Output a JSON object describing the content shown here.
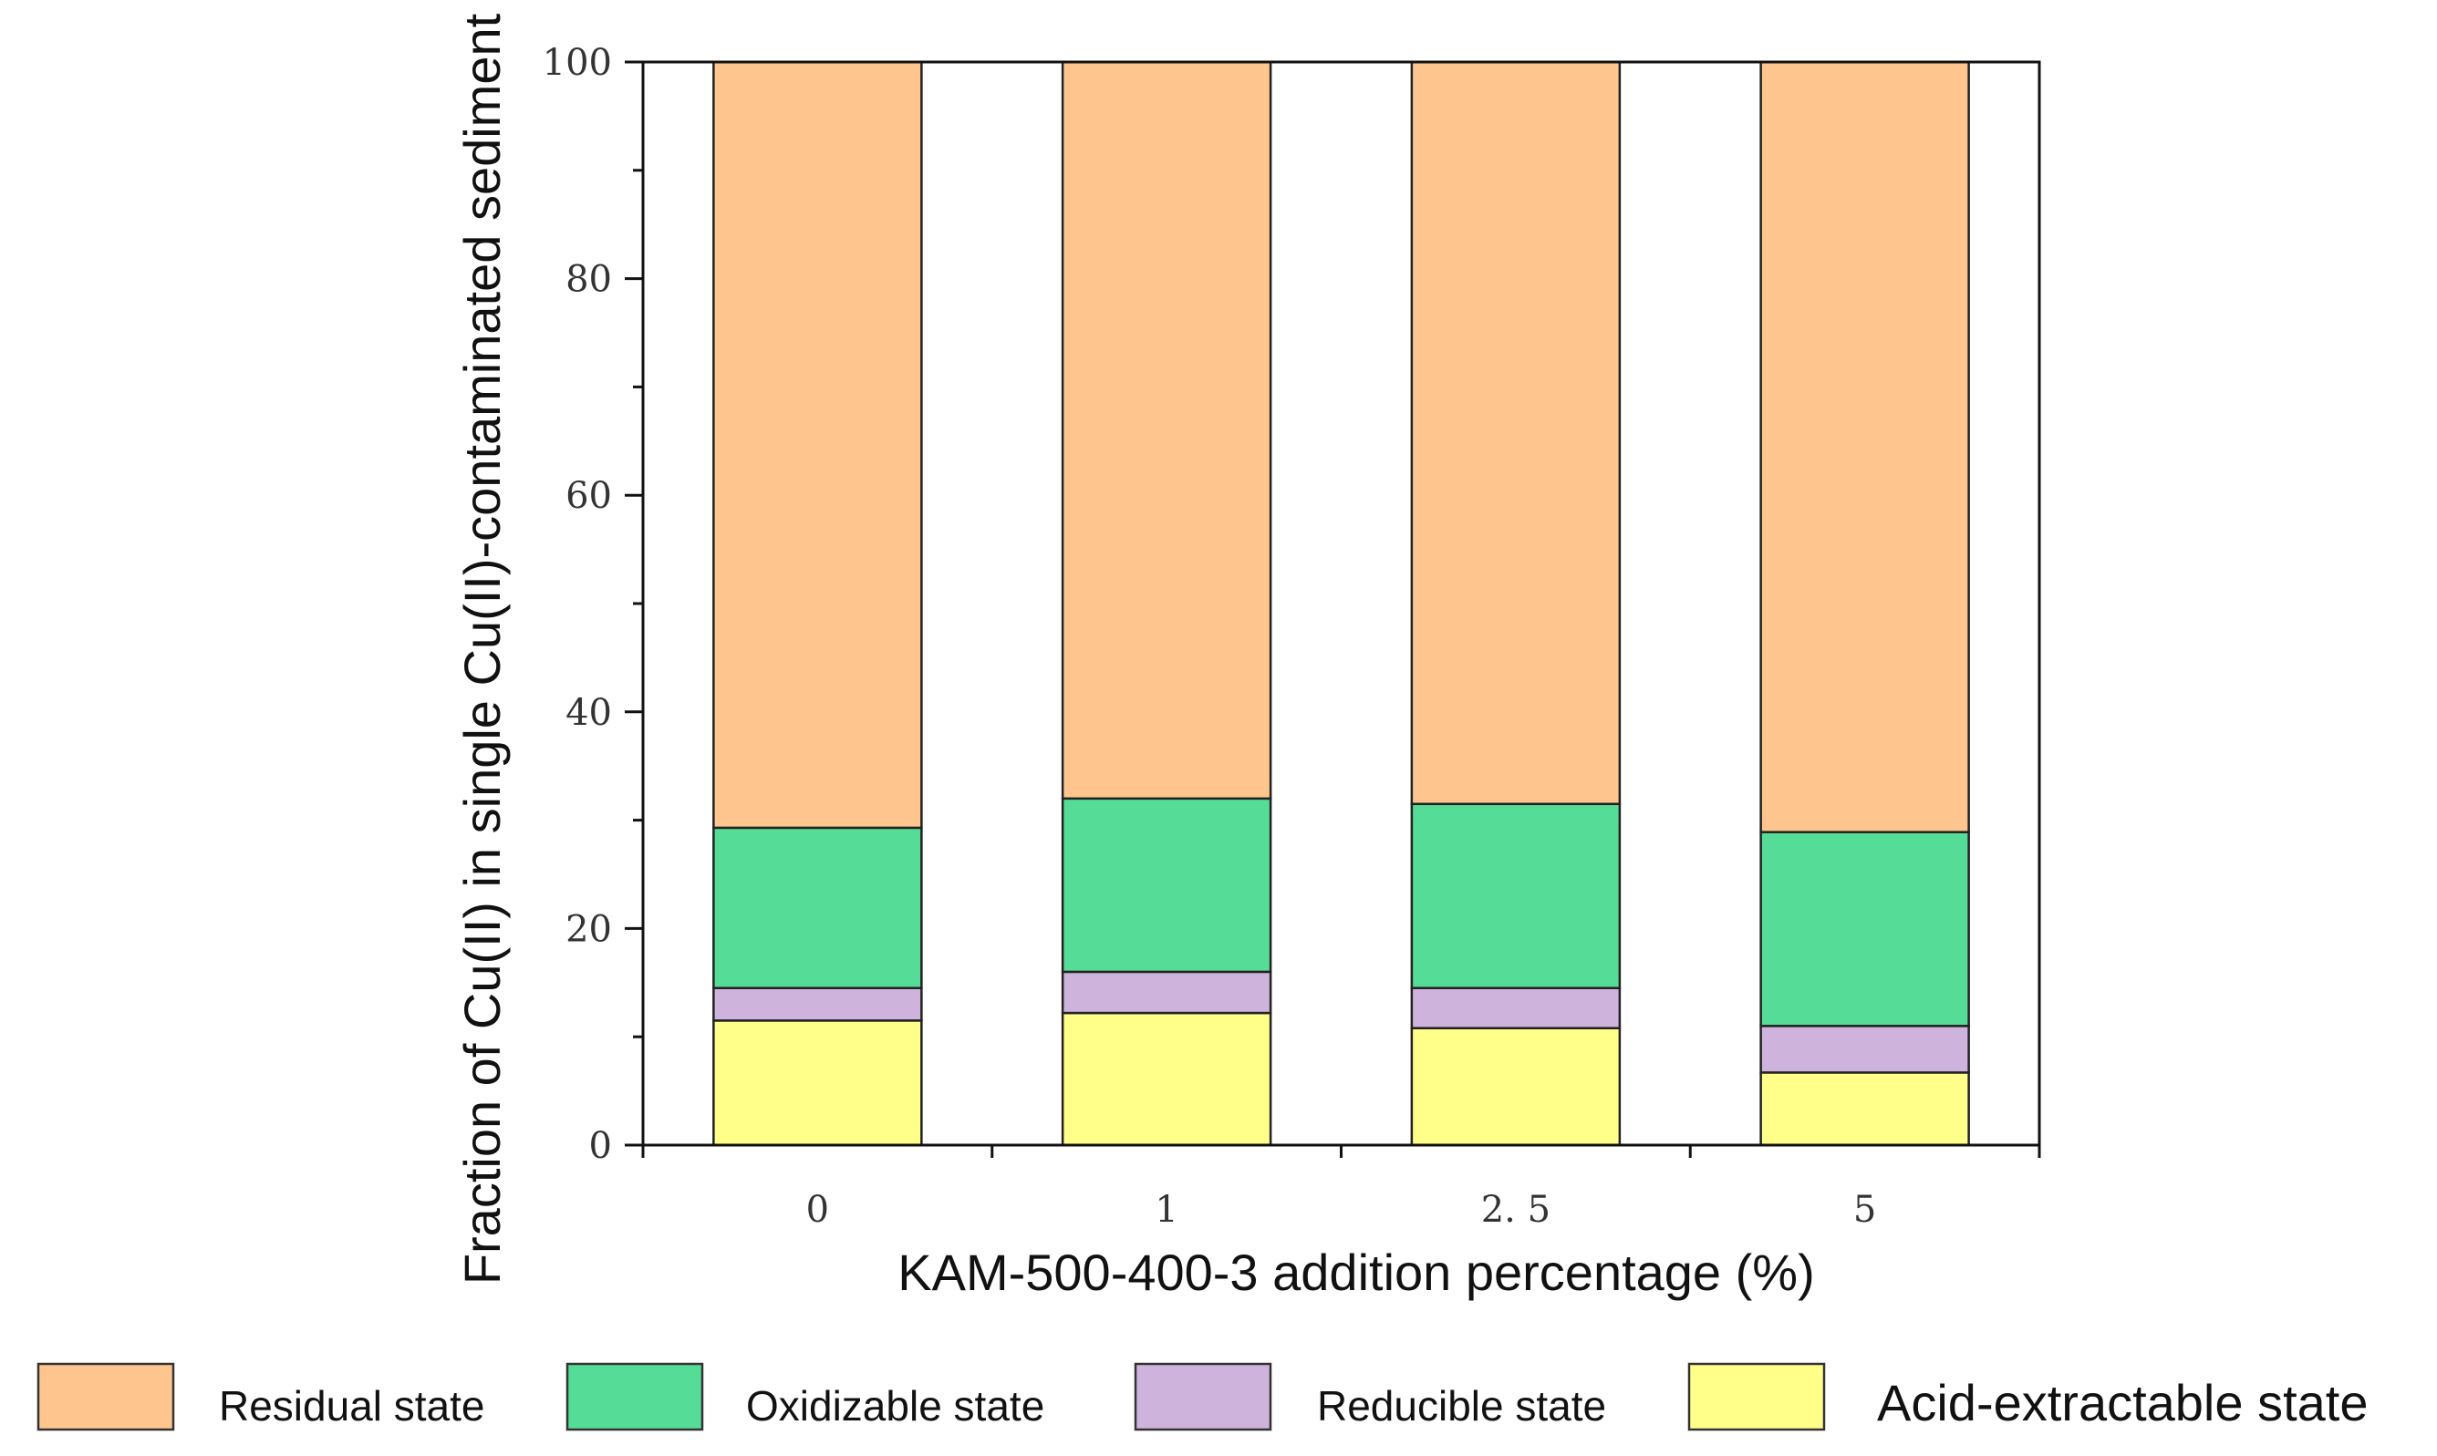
{
  "chart_data": {
    "type": "bar",
    "stacked": true,
    "xlabel": "KAM-500-400-3 addition percentage (%)",
    "ylabel": "Fraction of Cu(II) in single Cu(II)-contaminated sediment",
    "categories": [
      "0",
      "1",
      "2. 5",
      "5"
    ],
    "ylim": [
      0,
      100
    ],
    "yticks": [
      "0",
      "20",
      "40",
      "60",
      "80",
      "100"
    ],
    "grid": false,
    "legend_position": "bottom",
    "series": [
      {
        "name": "Acid-extractable state",
        "color": "#FFFF8A",
        "values": [
          11.5,
          12.2,
          10.8,
          6.7
        ]
      },
      {
        "name": "Reducible state",
        "color": "#CEB3DC",
        "values": [
          3.0,
          3.8,
          3.7,
          4.3
        ]
      },
      {
        "name": "Oxidizable state",
        "color": "#55DC96",
        "values": [
          14.8,
          16.0,
          17.0,
          17.9
        ]
      },
      {
        "name": "Residual state",
        "color": "#FFC58F",
        "values": [
          70.7,
          68.0,
          68.5,
          71.1
        ]
      }
    ],
    "legend_order": [
      "Residual state",
      "Oxidizable state",
      "Reducible state",
      "Acid-extractable state"
    ]
  }
}
